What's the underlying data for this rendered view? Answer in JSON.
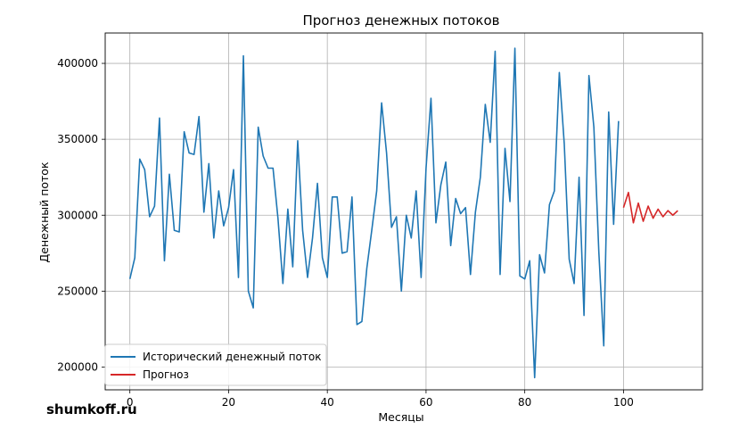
{
  "watermark": "shumkoff.ru",
  "chart_data": {
    "type": "line",
    "title": "Прогноз денежных потоков",
    "xlabel": "Месяцы",
    "ylabel": "Денежный поток",
    "xlim": [
      -5,
      116
    ],
    "ylim": [
      185000,
      420000
    ],
    "xticks": [
      0,
      20,
      40,
      60,
      80,
      100
    ],
    "yticks": [
      200000,
      250000,
      300000,
      350000,
      400000
    ],
    "grid": true,
    "legend_position": "lower-left",
    "series": [
      {
        "name": "Исторический денежный поток",
        "color": "#1f77b4",
        "x_start": 0,
        "values": [
          258000,
          272000,
          337000,
          330000,
          299000,
          306000,
          364000,
          270000,
          327000,
          290000,
          289000,
          355000,
          341000,
          340000,
          365000,
          302000,
          334000,
          285000,
          316000,
          293000,
          305000,
          330000,
          259000,
          405000,
          250000,
          239000,
          358000,
          339000,
          331000,
          331000,
          298000,
          255000,
          304000,
          266000,
          349000,
          290000,
          259000,
          285000,
          321000,
          272000,
          259000,
          312000,
          312000,
          275000,
          276000,
          312000,
          228000,
          230000,
          265000,
          290000,
          316000,
          374000,
          341000,
          292000,
          299000,
          250000,
          300000,
          285000,
          316000,
          259000,
          331000,
          377000,
          295000,
          320000,
          335000,
          280000,
          311000,
          301000,
          305000,
          261000,
          302000,
          325000,
          373000,
          348000,
          408000,
          261000,
          344000,
          309000,
          410000,
          260000,
          258000,
          270000,
          193000,
          274000,
          262000,
          307000,
          316000,
          394000,
          347000,
          271000,
          255000,
          325000,
          234000,
          392000,
          358000,
          276000,
          214000,
          368000,
          294000,
          362000
        ]
      },
      {
        "name": "Прогноз",
        "color": "#d62728",
        "x_start": 100,
        "values": [
          305000,
          315000,
          295000,
          308000,
          296000,
          306000,
          298000,
          304000,
          299000,
          303000,
          300000,
          303000
        ]
      }
    ]
  }
}
